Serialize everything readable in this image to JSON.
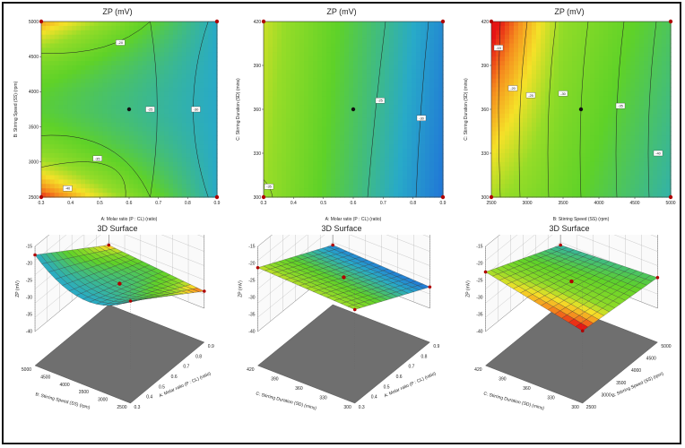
{
  "chart_data": [
    {
      "type": "contour",
      "title": "ZP (mV)",
      "xlabel": "A: Molar ratio (P : CL) (ratio)",
      "ylabel": "B: Stirring Speed (SS) (rpm)",
      "xlim": [
        0.3,
        0.9
      ],
      "ylim": [
        2500,
        5000
      ],
      "x_ticks": [
        "0.3",
        "0.4",
        "0.5",
        "0.6",
        "0.7",
        "0.8",
        "0.9"
      ],
      "y_ticks": [
        "2500",
        "3000",
        "3500",
        "4000",
        "4500",
        "5000"
      ],
      "contour_labels": [
        "-20",
        "-25",
        "-30",
        "-35",
        "-40"
      ],
      "design_point": {
        "x": 0.6,
        "y": 3750
      },
      "corner_points": [
        {
          "x": 0.3,
          "y": 2500
        },
        {
          "x": 0.9,
          "y": 2500
        },
        {
          "x": 0.3,
          "y": 5000
        },
        {
          "x": 0.9,
          "y": 5000
        }
      ]
    },
    {
      "type": "contour",
      "title": "ZP (mV)",
      "xlabel": "A: Molar ratio (P : CL) (ratio)",
      "ylabel": "C: Stirring Duration (SD) (mins)",
      "xlim": [
        0.3,
        0.9
      ],
      "ylim": [
        300,
        420
      ],
      "x_ticks": [
        "0.3",
        "0.4",
        "0.5",
        "0.6",
        "0.7",
        "0.8",
        "0.9"
      ],
      "y_ticks": [
        "300",
        "330",
        "360",
        "390",
        "420"
      ],
      "contour_labels": [
        "-25",
        "-30",
        "-35"
      ],
      "design_point": {
        "x": 0.6,
        "y": 360
      },
      "corner_points": [
        {
          "x": 0.3,
          "y": 300
        },
        {
          "x": 0.9,
          "y": 300
        },
        {
          "x": 0.3,
          "y": 420
        },
        {
          "x": 0.9,
          "y": 420
        }
      ]
    },
    {
      "type": "contour",
      "title": "ZP (mV)",
      "xlabel": "B: Stirring Speed (SS) (rpm)",
      "ylabel": "C: Stirring Duration (SD) (mins)",
      "xlim": [
        2500,
        5000
      ],
      "ylim": [
        300,
        420
      ],
      "x_ticks": [
        "2500",
        "3000",
        "3500",
        "4000",
        "4500",
        "5000"
      ],
      "y_ticks": [
        "300",
        "330",
        "360",
        "390",
        "420"
      ],
      "contour_labels": [
        "-15",
        "-20",
        "-25",
        "-30",
        "-35",
        "-40"
      ],
      "design_point": {
        "x": 3750,
        "y": 360
      },
      "corner_points": [
        {
          "x": 2500,
          "y": 300
        },
        {
          "x": 5000,
          "y": 300
        },
        {
          "x": 2500,
          "y": 420
        },
        {
          "x": 5000,
          "y": 420
        }
      ]
    },
    {
      "type": "surface3d",
      "title": "3D Surface",
      "xlabel": "A: Molar ratio (P : CL) (ratio)",
      "ylabel": "B: Stirring Speed (SS) (rpm)",
      "zlabel": "ZP (mV)",
      "x_ticks": [
        "0.3",
        "0.4",
        "0.5",
        "0.6",
        "0.7",
        "0.8",
        "0.9"
      ],
      "y_ticks": [
        "2500",
        "3000",
        "3500",
        "4000",
        "4500",
        "5000"
      ],
      "z_ticks": [
        "-15",
        "-20",
        "-25",
        "-30",
        "-35",
        "-40"
      ],
      "zlim": [
        -40,
        -15
      ]
    },
    {
      "type": "surface3d",
      "title": "3D Surface",
      "xlabel": "A: Molar ratio (P : CL) (ratio)",
      "ylabel": "C: Stirring Duration (SD) (mins)",
      "zlabel": "ZP (mV)",
      "x_ticks": [
        "0.3",
        "0.4",
        "0.5",
        "0.6",
        "0.7",
        "0.8",
        "0.9"
      ],
      "y_ticks": [
        "300",
        "330",
        "360",
        "390",
        "420"
      ],
      "z_ticks": [
        "-15",
        "-20",
        "-25",
        "-30",
        "-35",
        "-40"
      ],
      "zlim": [
        -40,
        -15
      ]
    },
    {
      "type": "surface3d",
      "title": "3D Surface",
      "xlabel": "B: Stirring Speed (SS) (rpm)",
      "ylabel": "C: Stirring Duration (SD) (mins)",
      "zlabel": "ZP (mV)",
      "x_ticks": [
        "2500",
        "3000",
        "3500",
        "4000",
        "4500",
        "5000"
      ],
      "y_ticks": [
        "300",
        "330",
        "360",
        "390",
        "420"
      ],
      "z_ticks": [
        "-15",
        "-20",
        "-25",
        "-30",
        "-35",
        "-40"
      ],
      "zlim": [
        -40,
        -15
      ]
    }
  ],
  "colors": {
    "low": "#1565d8",
    "mid": "#5fd21e",
    "high": "#e81010",
    "point": "#b00000"
  }
}
